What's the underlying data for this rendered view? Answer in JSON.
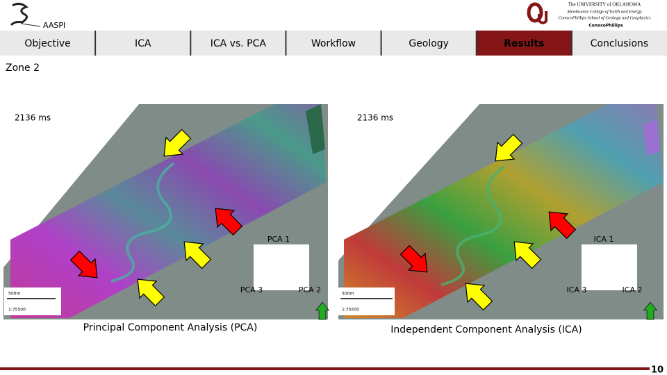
{
  "header": {
    "logo_left": "AASPI",
    "university": [
      "The UNIVERSITY of OKLAHOMA",
      "Mewbourne College of Earth and Energy",
      "ConocoPhillips School of Geology and Geophysics"
    ],
    "sponsor": "ConocoPhillips"
  },
  "nav": [
    "Objective",
    "ICA",
    "ICA vs. PCA",
    "Workflow",
    "Geology",
    "Results",
    "Conclusions"
  ],
  "zone": "Zone 2",
  "panels": [
    {
      "time": "2136 ms",
      "components": [
        "PCA 1",
        "PCA 3",
        "PCA 2"
      ],
      "scale": "500m",
      "ratio": "1:75500",
      "caption": "Principal Component Analysis (PCA)"
    },
    {
      "time": "2136 ms",
      "components": [
        "ICA 1",
        "ICA 3",
        "ICA 2"
      ],
      "scale": "500m",
      "ratio": "1:75500",
      "caption": "Independent Component Analysis (ICA)"
    }
  ],
  "page_number": "10"
}
